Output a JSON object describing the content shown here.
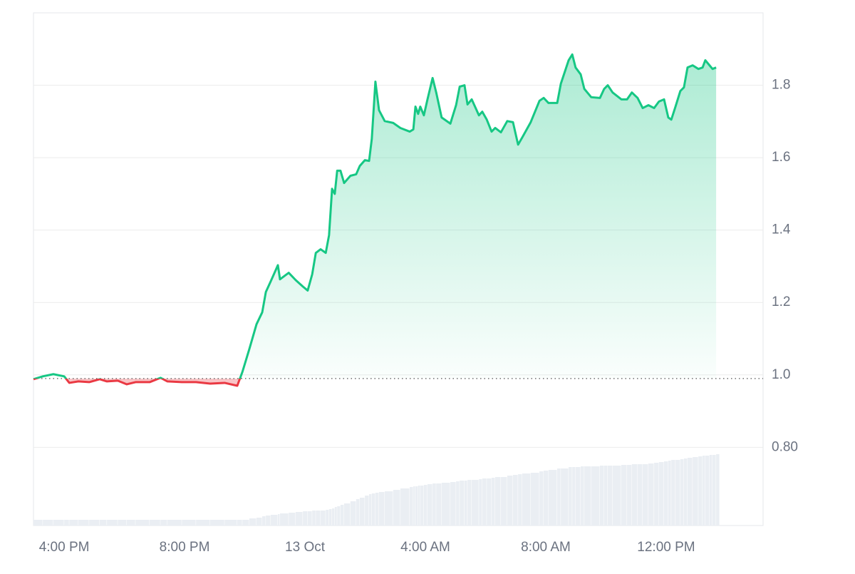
{
  "chart_data": {
    "type": "area",
    "x": [
      -1.02,
      -0.71,
      -0.36,
      0,
      0.17,
      0.47,
      0.83,
      1.18,
      1.42,
      1.78,
      2.08,
      2.37,
      2.84,
      3.2,
      3.43,
      3.91,
      4.38,
      4.85,
      5.33,
      5.75,
      5.92,
      6.15,
      6.39,
      6.58,
      6.7,
      6.86,
      7.1,
      7.17,
      7.46,
      7.69,
      7.93,
      8.09,
      8.24,
      8.36,
      8.52,
      8.69,
      8.8,
      8.9,
      8.99,
      9.07,
      9.18,
      9.3,
      9.51,
      9.7,
      9.82,
      9.99,
      10.13,
      10.22,
      10.34,
      10.46,
      10.65,
      10.93,
      11.17,
      11.48,
      11.6,
      11.67,
      11.76,
      11.83,
      11.95,
      12.07,
      12.24,
      12.36,
      12.54,
      12.83,
      13.02,
      13.14,
      13.3,
      13.4,
      13.54,
      13.78,
      13.89,
      14.04,
      14.2,
      14.32,
      14.51,
      14.72,
      14.91,
      15.08,
      15.22,
      15.5,
      15.79,
      15.93,
      16.09,
      16.38,
      16.5,
      16.76,
      16.88,
      16.99,
      17.16,
      17.28,
      17.51,
      17.8,
      17.94,
      18.06,
      18.22,
      18.51,
      18.7,
      18.86,
      19.05,
      19.22,
      19.41,
      19.6,
      19.76,
      19.93,
      20.07,
      20.17,
      20.31,
      20.47,
      20.59,
      20.71,
      20.88,
      21.07,
      21.21,
      21.3,
      21.44,
      21.54,
      21.66
    ],
    "values": [
      0.988,
      0.996,
      1.002,
      0.996,
      0.978,
      0.982,
      0.98,
      0.988,
      0.982,
      0.984,
      0.974,
      0.98,
      0.98,
      0.992,
      0.982,
      0.98,
      0.98,
      0.976,
      0.978,
      0.97,
      1.008,
      1.071,
      1.14,
      1.173,
      1.229,
      1.258,
      1.303,
      1.264,
      1.282,
      1.262,
      1.244,
      1.233,
      1.278,
      1.337,
      1.347,
      1.337,
      1.386,
      1.514,
      1.5,
      1.564,
      1.564,
      1.53,
      1.55,
      1.554,
      1.577,
      1.593,
      1.591,
      1.652,
      1.81,
      1.731,
      1.701,
      1.696,
      1.682,
      1.672,
      1.678,
      1.741,
      1.721,
      1.741,
      1.717,
      1.761,
      1.82,
      1.78,
      1.711,
      1.694,
      1.745,
      1.796,
      1.8,
      1.747,
      1.761,
      1.717,
      1.727,
      1.705,
      1.672,
      1.682,
      1.67,
      1.701,
      1.698,
      1.636,
      1.656,
      1.698,
      1.757,
      1.765,
      1.751,
      1.751,
      1.804,
      1.869,
      1.885,
      1.849,
      1.83,
      1.79,
      1.767,
      1.765,
      1.79,
      1.8,
      1.78,
      1.761,
      1.761,
      1.78,
      1.765,
      1.737,
      1.745,
      1.737,
      1.755,
      1.761,
      1.711,
      1.705,
      1.741,
      1.784,
      1.794,
      1.849,
      1.855,
      1.845,
      1.849,
      1.869,
      1.855,
      1.845,
      1.849
    ],
    "volume": [
      8,
      8,
      8,
      8,
      8,
      8,
      8,
      8,
      8,
      8,
      8,
      8,
      8,
      8,
      8,
      8,
      8,
      8,
      8,
      8,
      8,
      10,
      11,
      13,
      14,
      15,
      16,
      17,
      18,
      19,
      20,
      20,
      21,
      21,
      21,
      22,
      23,
      24,
      26,
      27,
      29,
      31,
      34,
      37,
      39,
      42,
      44,
      45,
      46,
      47,
      48,
      50,
      52,
      54,
      55,
      55,
      56,
      56,
      57,
      58,
      59,
      59,
      60,
      61,
      62,
      63,
      63,
      64,
      64,
      65,
      66,
      66,
      67,
      68,
      68,
      70,
      71,
      72,
      73,
      74,
      76,
      77,
      78,
      80,
      80,
      82,
      82,
      82,
      83,
      83,
      83,
      84,
      84,
      84,
      84,
      85,
      85,
      86,
      86,
      86,
      87,
      88,
      89,
      90,
      91,
      92,
      92,
      93,
      94,
      95,
      96,
      97,
      98,
      98,
      99,
      99,
      100
    ],
    "volume_lim": [
      0,
      110
    ],
    "baseline": 0.99,
    "color": "#16c784",
    "down_color": "#ea3943",
    "volume_color": "#eaeef3",
    "xlim": [
      -1.02,
      23.22
    ],
    "xticks": [
      {
        "value": 0,
        "label": "4:00 PM"
      },
      {
        "value": 4,
        "label": "8:00 PM"
      },
      {
        "value": 8,
        "label": "13 Oct"
      },
      {
        "value": 12,
        "label": "4:00 AM"
      },
      {
        "value": 16,
        "label": "8:00 AM"
      },
      {
        "value": 20,
        "label": "12:00 PM"
      }
    ],
    "ylim": [
      0.584,
      2.0
    ],
    "yticks": [
      {
        "value": 0.8,
        "label": "0.80"
      },
      {
        "value": 1,
        "label": "1.0"
      },
      1.2,
      1.4,
      1.6,
      1.8
    ],
    "grid": true
  }
}
